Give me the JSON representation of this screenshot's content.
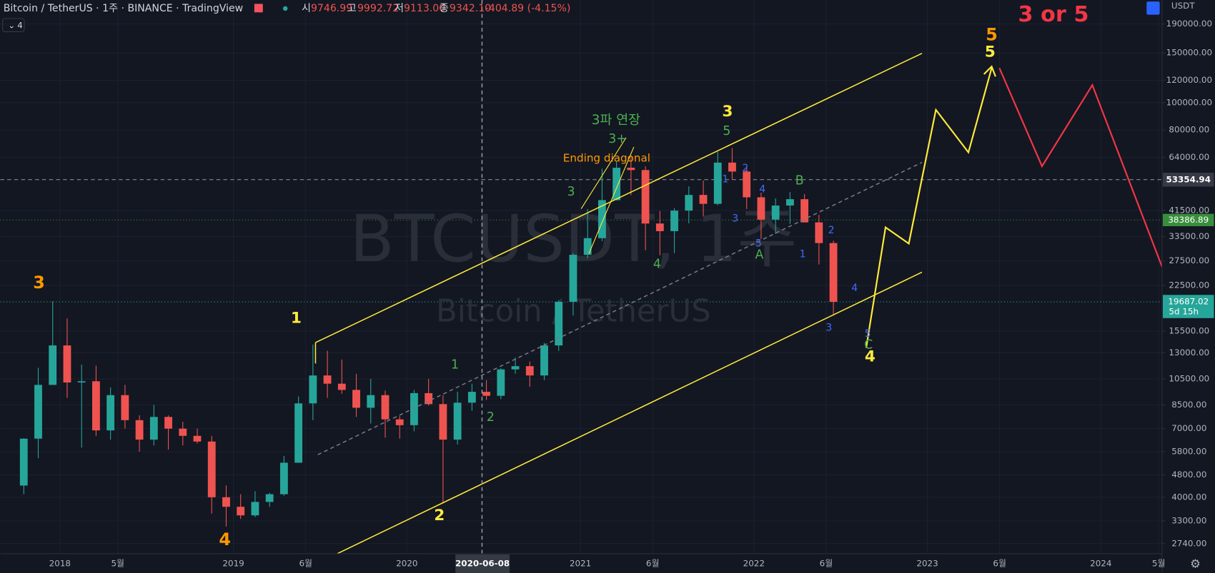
{
  "header": {
    "symbol": "Bitcoin / TetherUS · 1주 · BINANCE · TradingView",
    "o_label": "시",
    "o": "9746.99",
    "h_label": "고",
    "h": "9992.72",
    "l_label": "저",
    "l": "9113.00",
    "c_label": "종",
    "c": "9342.10",
    "change": "-404.89 (-4.15%)",
    "indicator_count": "4",
    "currency": "USDT"
  },
  "watermark": {
    "ticker": "BTCUSDT, 1주",
    "name": "Bitcoin / TetherUS"
  },
  "chart_data": {
    "type": "candlestick",
    "log_scale": true,
    "up_color": "#26a69a",
    "down_color": "#ef5350",
    "x": [
      "2017-10",
      "2017-11",
      "2017-12",
      "2018-01",
      "2018-02",
      "2018-03",
      "2018-04",
      "2018-05",
      "2018-06",
      "2018-07",
      "2018-08",
      "2018-09",
      "2018-10",
      "2018-11",
      "2018-12",
      "2019-01",
      "2019-02",
      "2019-03",
      "2019-04",
      "2019-05",
      "2019-06",
      "2019-07",
      "2019-08",
      "2019-09",
      "2019-10",
      "2019-11",
      "2019-12",
      "2020-01",
      "2020-02",
      "2020-03",
      "2020-04",
      "2020-05",
      "2020-06",
      "2020-07",
      "2020-08",
      "2020-09",
      "2020-10",
      "2020-11",
      "2020-12",
      "2021-01",
      "2021-02",
      "2021-03",
      "2021-04",
      "2021-05",
      "2021-06",
      "2021-07",
      "2021-08",
      "2021-09",
      "2021-10",
      "2021-11",
      "2021-12",
      "2022-01",
      "2022-02",
      "2022-03",
      "2022-04",
      "2022-05",
      "2022-06"
    ],
    "open": [
      4400,
      6450,
      10000,
      13800,
      10200,
      10300,
      6900,
      9200,
      7500,
      6400,
      7700,
      7000,
      6600,
      6300,
      4000,
      3700,
      3450,
      3850,
      4100,
      5300,
      8600,
      10800,
      10100,
      9600,
      8300,
      9200,
      7550,
      7200,
      9350,
      8550,
      6400,
      8650,
      9450,
      9150,
      11350,
      11650,
      10800,
      13800,
      19700,
      28900,
      33100,
      45150,
      58800,
      57700,
      37300,
      35050,
      41450,
      47100,
      43800,
      61300,
      57000,
      46200,
      38500,
      43200,
      45500,
      37650,
      31800
    ],
    "high": [
      6470,
      11500,
      19800,
      17200,
      11800,
      11700,
      9800,
      10000,
      7800,
      8500,
      7800,
      7400,
      7000,
      6600,
      4400,
      4100,
      4200,
      4150,
      5600,
      9100,
      13900,
      13200,
      12300,
      10950,
      10500,
      9550,
      7750,
      9600,
      10500,
      9200,
      9450,
      10100,
      10400,
      11450,
      12500,
      12100,
      14100,
      19950,
      29300,
      41950,
      58350,
      61800,
      64850,
      59500,
      41300,
      42300,
      50500,
      52950,
      67000,
      69000,
      59050,
      47990,
      45800,
      48200,
      47450,
      40000,
      32400
    ],
    "low": [
      4100,
      5500,
      10800,
      9000,
      6000,
      6600,
      6400,
      7000,
      5800,
      6100,
      5900,
      6100,
      6200,
      3500,
      3150,
      3350,
      3400,
      3700,
      4050,
      5300,
      7500,
      9000,
      9300,
      7700,
      7300,
      6500,
      6450,
      6850,
      8450,
      3800,
      6150,
      8100,
      8850,
      8900,
      10950,
      9850,
      10400,
      13200,
      17600,
      28100,
      32300,
      45000,
      47000,
      30000,
      28800,
      29300,
      37350,
      39600,
      43300,
      53250,
      42000,
      32900,
      34300,
      37200,
      37700,
      26700,
      17600
    ],
    "close": [
      6450,
      10000,
      13800,
      10200,
      10300,
      6900,
      9200,
      7500,
      6400,
      7700,
      7000,
      6600,
      6300,
      4000,
      3700,
      3450,
      3850,
      4100,
      5300,
      8600,
      10800,
      10100,
      9600,
      8300,
      9200,
      7550,
      7200,
      9350,
      8550,
      6400,
      8650,
      9450,
      9150,
      11350,
      11650,
      10800,
      13800,
      19700,
      28900,
      33100,
      45150,
      58800,
      57700,
      37300,
      35050,
      41450,
      47100,
      43800,
      61300,
      57000,
      46200,
      38500,
      43200,
      45500,
      37650,
      31800,
      19687
    ],
    "ylim": [
      2524,
      231000
    ],
    "yticks": [
      {
        "value": 190000,
        "label": "190000.00"
      },
      {
        "value": 150000,
        "label": "150000.00"
      },
      {
        "value": 120000,
        "label": "120000.00"
      },
      {
        "value": 100000,
        "label": "100000.00"
      },
      {
        "value": 80000,
        "label": "80000.00"
      },
      {
        "value": 64000,
        "label": "64000.00"
      },
      {
        "value": 41500,
        "label": "41500.00"
      },
      {
        "value": 33500,
        "label": "33500.00"
      },
      {
        "value": 27500,
        "label": "27500.00"
      },
      {
        "value": 22500,
        "label": "22500.00"
      },
      {
        "value": 15500,
        "label": "15500.00"
      },
      {
        "value": 13000,
        "label": "13000.00"
      },
      {
        "value": 10500,
        "label": "10500.00"
      },
      {
        "value": 8500,
        "label": "8500.00"
      },
      {
        "value": 7000,
        "label": "7000.00"
      },
      {
        "value": 5800,
        "label": "5800.00"
      },
      {
        "value": 4800,
        "label": "4800.00"
      },
      {
        "value": 4000,
        "label": "4000.00"
      },
      {
        "value": 3300,
        "label": "3300.00"
      },
      {
        "value": 2740,
        "label": "2740.00"
      }
    ],
    "xticks": [
      {
        "value": "2018-01",
        "label": "2018"
      },
      {
        "value": "2018-05",
        "label": "5월"
      },
      {
        "value": "2019-01",
        "label": "2019"
      },
      {
        "value": "2019-06",
        "label": "6월"
      },
      {
        "value": "2020-01",
        "label": "2020"
      },
      {
        "value": "2021-01",
        "label": "2021"
      },
      {
        "value": "2021-06",
        "label": "6월"
      },
      {
        "value": "2022-01",
        "label": "2022"
      },
      {
        "value": "2022-06",
        "label": "6월"
      },
      {
        "value": "2023-01",
        "label": "2023"
      },
      {
        "value": "2023-06",
        "label": "6월"
      },
      {
        "value": "2024-01",
        "label": "2024"
      },
      {
        "value": "2024-05",
        "label": "5월"
      }
    ],
    "grid": true,
    "crosshair_date": "2020-06-08",
    "crosshair_price": 53354.94,
    "ma_price": 38386.89,
    "last_price": 19687.02,
    "countdown": "5d 15h",
    "annotations": [
      {
        "text": "3",
        "color": "#ff9800"
      },
      {
        "text": "4",
        "color": "#ff9800"
      },
      {
        "text": "1",
        "color": "#ffeb3b"
      },
      {
        "text": "2",
        "color": "#ffeb3b"
      },
      {
        "text": "1",
        "color": "#4caf50"
      },
      {
        "text": "2",
        "color": "#4caf50"
      },
      {
        "text": "3",
        "color": "#4caf50"
      },
      {
        "text": "3파 연장",
        "color": "#4caf50"
      },
      {
        "text": "3+",
        "color": "#4caf50"
      },
      {
        "text": "Ending diagonal",
        "color": "#ff9800"
      },
      {
        "text": "4",
        "color": "#4caf50"
      },
      {
        "text": "3",
        "color": "#ffeb3b"
      },
      {
        "text": "5",
        "color": "#4caf50"
      },
      {
        "text": "1",
        "color": "#3d6bff"
      },
      {
        "text": "2",
        "color": "#3d6bff"
      },
      {
        "text": "3",
        "color": "#3d6bff"
      },
      {
        "text": "4",
        "color": "#3d6bff"
      },
      {
        "text": "5",
        "color": "#3d6bff"
      },
      {
        "text": "A",
        "color": "#4caf50"
      },
      {
        "text": "B",
        "color": "#4caf50"
      },
      {
        "text": "1",
        "color": "#3d6bff"
      },
      {
        "text": "2",
        "color": "#3d6bff"
      },
      {
        "text": "3",
        "color": "#3d6bff"
      },
      {
        "text": "4",
        "color": "#3d6bff"
      },
      {
        "text": "5",
        "color": "#3d6bff"
      },
      {
        "text": "C",
        "color": "#4caf50"
      },
      {
        "text": "4",
        "color": "#ffeb3b"
      },
      {
        "text": "5",
        "color": "#ff9800"
      },
      {
        "text": "5",
        "color": "#ffeb3b"
      },
      {
        "text": "3 or 5",
        "color": "#f23645"
      }
    ]
  }
}
